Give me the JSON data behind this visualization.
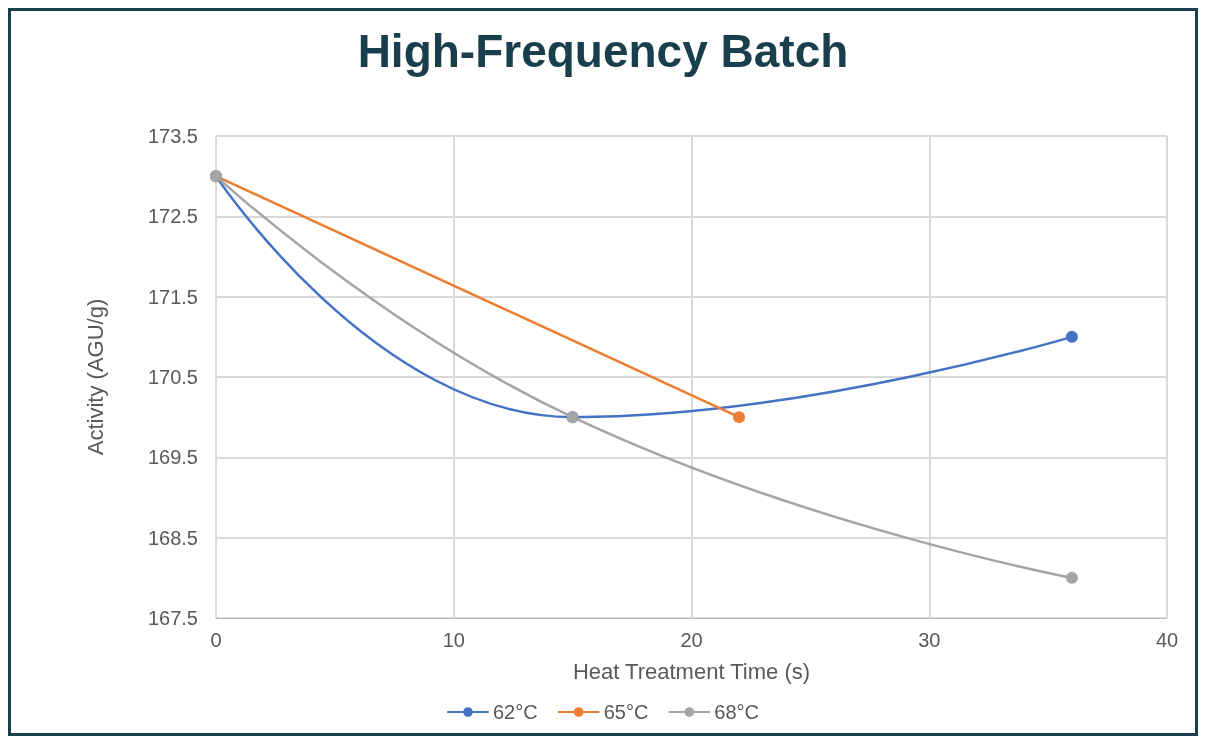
{
  "chart_data": {
    "type": "line",
    "title": "High-Frequency Batch",
    "xlabel": "Heat Treatment Time (s)",
    "ylabel": "Activity (AGU/g)",
    "xlim": [
      0,
      40
    ],
    "xticks": [
      0,
      10,
      20,
      30,
      40
    ],
    "ylim": [
      167.5,
      173.5
    ],
    "yticks": [
      167.5,
      168.5,
      169.5,
      170.5,
      171.5,
      172.5,
      173.5
    ],
    "grid": true,
    "legend": "bottom",
    "marker": "circle",
    "line_style": "solid",
    "series": [
      {
        "name": "62°C",
        "color": "#4472c4",
        "x": [
          0,
          15,
          36
        ],
        "values": [
          173,
          170,
          171
        ]
      },
      {
        "name": "65°C",
        "color": "#ed7d31",
        "x": [
          0,
          22
        ],
        "values": [
          173,
          170
        ]
      },
      {
        "name": "68°C",
        "color": "#a5a5a5",
        "x": [
          0,
          15,
          36
        ],
        "values": [
          173,
          170,
          168
        ]
      }
    ]
  }
}
